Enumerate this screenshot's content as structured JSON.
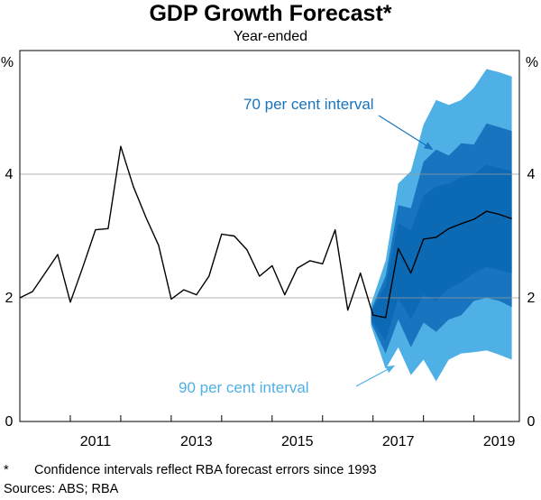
{
  "chart_data": {
    "type": "line",
    "title": "GDP Growth Forecast*",
    "subtitle": "Year-ended",
    "ylabel_left": "%",
    "ylabel_right": "%",
    "ylim": [
      0,
      6
    ],
    "yticks": [
      0,
      2,
      4
    ],
    "xlim": [
      2010.0,
      2019.9
    ],
    "xticks": [
      {
        "value": 2011,
        "label": "2011"
      },
      {
        "value": 2013,
        "label": "2013"
      },
      {
        "value": 2015,
        "label": "2015"
      },
      {
        "value": 2017,
        "label": "2017"
      },
      {
        "value": 2019,
        "label": "2019"
      }
    ],
    "series": [
      {
        "name": "GDP growth",
        "color": "#000000",
        "points": [
          [
            2010.0,
            2.0
          ],
          [
            2010.25,
            2.1
          ],
          [
            2010.5,
            2.4
          ],
          [
            2010.75,
            2.7
          ],
          [
            2011.0,
            1.93
          ],
          [
            2011.25,
            2.5
          ],
          [
            2011.5,
            3.1
          ],
          [
            2011.75,
            3.12
          ],
          [
            2012.0,
            4.45
          ],
          [
            2012.25,
            3.8
          ],
          [
            2012.5,
            3.3
          ],
          [
            2012.75,
            2.85
          ],
          [
            2013.0,
            1.98
          ],
          [
            2013.25,
            2.13
          ],
          [
            2013.5,
            2.05
          ],
          [
            2013.75,
            2.35
          ],
          [
            2014.0,
            3.03
          ],
          [
            2014.25,
            3.0
          ],
          [
            2014.5,
            2.78
          ],
          [
            2014.75,
            2.35
          ],
          [
            2015.0,
            2.52
          ],
          [
            2015.25,
            2.05
          ],
          [
            2015.5,
            2.48
          ],
          [
            2015.75,
            2.6
          ],
          [
            2016.0,
            2.55
          ],
          [
            2016.25,
            3.1
          ],
          [
            2016.5,
            1.8
          ],
          [
            2016.75,
            2.4
          ],
          [
            2017.0,
            1.72
          ],
          [
            2017.25,
            1.68
          ],
          [
            2017.5,
            2.8
          ],
          [
            2017.75,
            2.4
          ],
          [
            2018.0,
            2.95
          ],
          [
            2018.25,
            2.98
          ],
          [
            2018.5,
            3.12
          ],
          [
            2018.75,
            3.2
          ],
          [
            2019.0,
            3.27
          ],
          [
            2019.25,
            3.4
          ],
          [
            2019.5,
            3.35
          ],
          [
            2019.75,
            3.28
          ]
        ]
      }
    ],
    "intervals": [
      {
        "name": "90 per cent interval",
        "color": "#4fb0e5",
        "x": [
          2016.96,
          2017.25,
          2017.5,
          2017.75,
          2018.0,
          2018.25,
          2018.5,
          2018.75,
          2019.0,
          2019.25,
          2019.5,
          2019.75
        ],
        "upper": [
          1.9,
          2.6,
          3.85,
          4.05,
          4.8,
          5.2,
          5.12,
          5.2,
          5.4,
          5.7,
          5.65,
          5.58
        ],
        "lower": [
          1.55,
          0.85,
          1.2,
          0.75,
          1.0,
          0.65,
          1.0,
          1.1,
          1.12,
          1.15,
          1.08,
          1.0
        ]
      },
      {
        "name": "70 per cent interval",
        "color": "#1874be",
        "x": [
          2016.96,
          2017.25,
          2017.5,
          2017.75,
          2018.0,
          2018.25,
          2018.5,
          2018.75,
          2019.0,
          2019.25,
          2019.5,
          2019.75
        ],
        "upper": [
          1.8,
          2.35,
          3.5,
          3.45,
          4.2,
          4.4,
          4.3,
          4.5,
          4.48,
          4.82,
          4.76,
          4.7
        ],
        "lower": [
          1.6,
          1.1,
          1.65,
          1.2,
          1.6,
          1.45,
          1.65,
          1.72,
          1.95,
          2.0,
          1.95,
          1.85
        ]
      },
      {
        "name": "inner interval",
        "color": "#0c6ab5",
        "x": [
          2016.96,
          2017.25,
          2017.5,
          2017.75,
          2018.0,
          2018.25,
          2018.5,
          2018.75,
          2019.0,
          2019.25,
          2019.5,
          2019.75
        ],
        "upper": [
          1.75,
          2.2,
          3.2,
          3.1,
          3.65,
          3.8,
          3.85,
          3.95,
          4.0,
          4.15,
          4.1,
          4.05
        ],
        "lower": [
          1.65,
          1.3,
          2.0,
          1.65,
          2.05,
          1.95,
          2.15,
          2.25,
          2.4,
          2.5,
          2.45,
          2.4
        ]
      }
    ],
    "annotations": [
      {
        "text": "70 per cent interval",
        "at": [
          2017.35,
          5.1
        ],
        "arrow_to": [
          2018.18,
          4.4
        ],
        "color": "#1874be"
      },
      {
        "text": "90 per cent interval",
        "at": [
          2016.5,
          0.52
        ],
        "arrow_to": [
          2017.42,
          0.9
        ],
        "color": "#4fb0e5"
      }
    ]
  },
  "footnote": {
    "marker": "*",
    "text": "Confidence intervals reflect RBA forecast errors since 1993"
  },
  "sources": "Sources: ABS; RBA"
}
